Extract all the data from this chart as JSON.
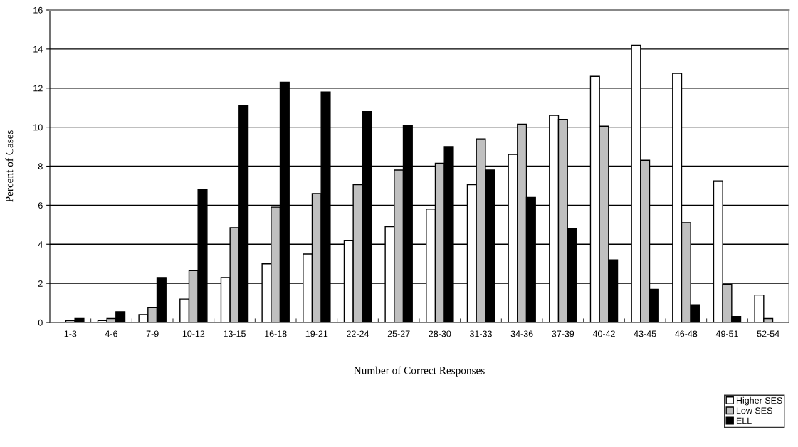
{
  "chart_data": {
    "type": "bar",
    "xlabel": "Number of Correct Responses",
    "ylabel": "Percent of Cases",
    "categories": [
      "1-3",
      "4-6",
      "7-9",
      "10-12",
      "13-15",
      "16-18",
      "19-21",
      "22-24",
      "25-27",
      "28-30",
      "31-33",
      "34-36",
      "37-39",
      "40-42",
      "43-45",
      "46-48",
      "49-51",
      "52-54"
    ],
    "series": [
      {
        "name": "Higher SES",
        "color": "#ffffff",
        "values": [
          null,
          0.1,
          0.4,
          1.2,
          2.3,
          3.0,
          3.5,
          4.2,
          4.9,
          5.8,
          7.05,
          8.6,
          10.6,
          12.6,
          14.2,
          12.75,
          7.25,
          1.4
        ]
      },
      {
        "name": "Low SES",
        "color": "#c0c0c0",
        "values": [
          0.1,
          0.2,
          0.75,
          2.65,
          4.85,
          5.9,
          6.6,
          7.05,
          7.8,
          8.15,
          9.4,
          10.15,
          10.4,
          10.05,
          8.3,
          5.1,
          1.95,
          0.2
        ]
      },
      {
        "name": "ELL",
        "color": "#000000",
        "values": [
          0.2,
          0.55,
          2.3,
          6.8,
          11.1,
          12.3,
          11.8,
          10.8,
          10.1,
          9.0,
          7.8,
          6.4,
          4.8,
          3.2,
          1.7,
          0.9,
          0.3,
          null
        ]
      }
    ],
    "ylim": [
      0,
      16
    ],
    "yticks": [
      0,
      2,
      4,
      6,
      8,
      10,
      12,
      14,
      16
    ],
    "grid": "y",
    "legend": "bottom right"
  }
}
